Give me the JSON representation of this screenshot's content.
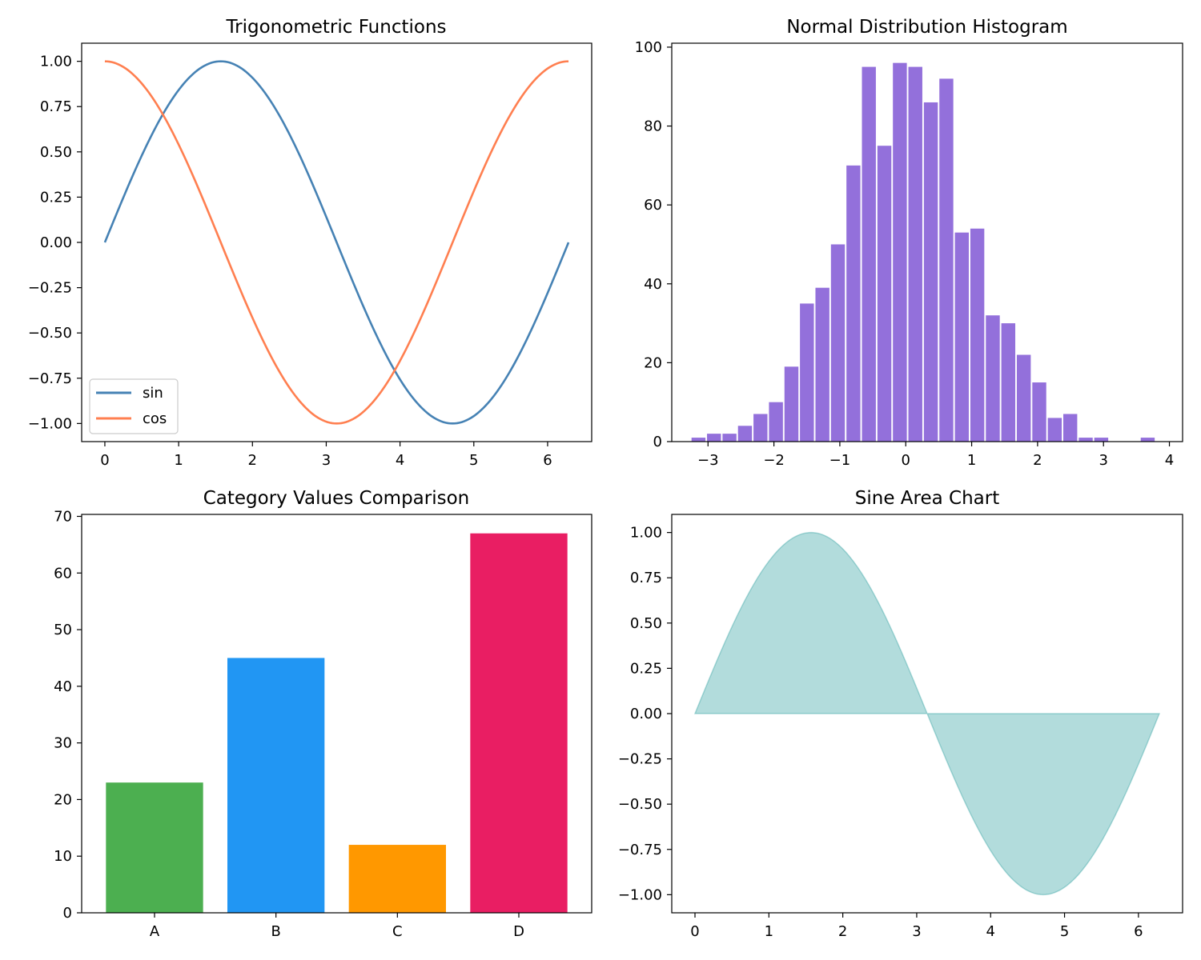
{
  "chart_data": [
    {
      "type": "line",
      "title": "Trigonometric Functions",
      "xlabel": "",
      "ylabel": "",
      "xlim": [
        -0.3142,
        6.5973
      ],
      "ylim": [
        -1.1,
        1.1
      ],
      "x_ticks": [
        0,
        1,
        2,
        3,
        4,
        5,
        6
      ],
      "x_tick_labels": [
        "0",
        "1",
        "2",
        "3",
        "4",
        "5",
        "6"
      ],
      "y_ticks": [
        1.0,
        0.75,
        0.5,
        0.25,
        0.0,
        -0.25,
        -0.5,
        -0.75,
        -1.0
      ],
      "y_tick_labels": [
        "1.00",
        "0.75",
        "0.50",
        "0.25",
        "0.00",
        "−0.25",
        "−0.50",
        "−0.75",
        "−1.00"
      ],
      "x": [
        0,
        0.2618,
        0.5236,
        0.7854,
        1.0472,
        1.309,
        1.5708,
        1.8326,
        2.0944,
        2.3562,
        2.618,
        2.8798,
        3.1416,
        3.4034,
        3.6652,
        3.927,
        4.1888,
        4.4506,
        4.7124,
        4.9742,
        5.236,
        5.4978,
        5.7596,
        6.0214,
        6.2832
      ],
      "series": [
        {
          "name": "sin",
          "color": "#4682b4",
          "values": [
            0,
            0.2588,
            0.5,
            0.7071,
            0.866,
            0.9659,
            1.0,
            0.9659,
            0.866,
            0.7071,
            0.5,
            0.2588,
            0,
            -0.2588,
            -0.5,
            -0.7071,
            -0.866,
            -0.9659,
            -1.0,
            -0.9659,
            -0.866,
            -0.7071,
            -0.5,
            -0.2588,
            0
          ]
        },
        {
          "name": "cos",
          "color": "#ff7f50",
          "values": [
            1.0,
            0.9659,
            0.866,
            0.7071,
            0.5,
            0.2588,
            0,
            -0.2588,
            -0.5,
            -0.7071,
            -0.866,
            -0.9659,
            -1.0,
            -0.9659,
            -0.866,
            -0.7071,
            -0.5,
            -0.2588,
            0,
            0.2588,
            0.5,
            0.7071,
            0.866,
            0.9659,
            1.0
          ]
        }
      ],
      "legend_position": "lower-left",
      "grid": false
    },
    {
      "type": "bar",
      "subtype": "histogram",
      "title": "Normal Distribution Histogram",
      "xlabel": "",
      "ylabel": "",
      "xlim": [
        -3.55,
        4.2
      ],
      "ylim": [
        0,
        101
      ],
      "bar_color": "#9370db",
      "bin_start": -3.25,
      "bin_width": 0.235,
      "bar_width_fraction": 0.9,
      "values": [
        1,
        2,
        2,
        4,
        7,
        10,
        19,
        35,
        39,
        50,
        70,
        95,
        75,
        96,
        95,
        86,
        92,
        53,
        54,
        32,
        30,
        22,
        15,
        6,
        7,
        1,
        1,
        0,
        0,
        1
      ],
      "x_ticks": [
        -3,
        -2,
        -1,
        0,
        1,
        2,
        3,
        4
      ],
      "x_tick_labels": [
        "−3",
        "−2",
        "−1",
        "0",
        "1",
        "2",
        "3",
        "4"
      ],
      "y_ticks": [
        0,
        20,
        40,
        60,
        80,
        100
      ],
      "y_tick_labels": [
        "0",
        "20",
        "40",
        "60",
        "80",
        "100"
      ],
      "grid": false
    },
    {
      "type": "bar",
      "title": "Category Values Comparison",
      "xlabel": "",
      "ylabel": "",
      "categories": [
        "A",
        "B",
        "C",
        "D"
      ],
      "values": [
        23,
        45,
        12,
        67
      ],
      "colors": [
        "#4caf50",
        "#2196f3",
        "#ff9800",
        "#e91e63"
      ],
      "ylim": [
        0,
        70.35
      ],
      "y_ticks": [
        0,
        10,
        20,
        30,
        40,
        50,
        60,
        70
      ],
      "y_tick_labels": [
        "0",
        "10",
        "20",
        "30",
        "40",
        "50",
        "60",
        "70"
      ],
      "grid": false
    },
    {
      "type": "area",
      "title": "Sine Area Chart",
      "xlabel": "",
      "ylabel": "",
      "xlim": [
        -0.3142,
        6.5973
      ],
      "ylim": [
        -1.1,
        1.1
      ],
      "fill_color": "#008b8b",
      "fill_opacity": 0.3,
      "x": [
        0,
        0.2618,
        0.5236,
        0.7854,
        1.0472,
        1.309,
        1.5708,
        1.8326,
        2.0944,
        2.3562,
        2.618,
        2.8798,
        3.1416,
        3.4034,
        3.6652,
        3.927,
        4.1888,
        4.4506,
        4.7124,
        4.9742,
        5.236,
        5.4978,
        5.7596,
        6.0214,
        6.2832
      ],
      "values": [
        0,
        0.2588,
        0.5,
        0.7071,
        0.866,
        0.9659,
        1.0,
        0.9659,
        0.866,
        0.7071,
        0.5,
        0.2588,
        0,
        -0.2588,
        -0.5,
        -0.7071,
        -0.866,
        -0.9659,
        -1.0,
        -0.9659,
        -0.866,
        -0.7071,
        -0.5,
        -0.2588,
        0
      ],
      "x_ticks": [
        0,
        1,
        2,
        3,
        4,
        5,
        6
      ],
      "x_tick_labels": [
        "0",
        "1",
        "2",
        "3",
        "4",
        "5",
        "6"
      ],
      "y_ticks": [
        1.0,
        0.75,
        0.5,
        0.25,
        0.0,
        -0.25,
        -0.5,
        -0.75,
        -1.0
      ],
      "y_tick_labels": [
        "1.00",
        "0.75",
        "0.50",
        "0.25",
        "0.00",
        "−0.25",
        "−0.50",
        "−0.75",
        "−1.00"
      ],
      "grid": false
    }
  ]
}
